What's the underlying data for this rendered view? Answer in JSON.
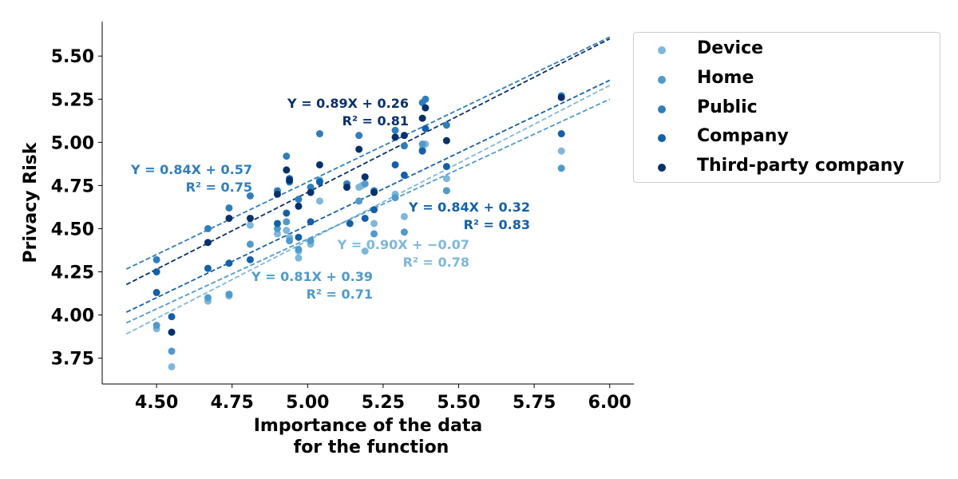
{
  "chart_data": {
    "type": "scatter",
    "xlabel": [
      "Importance of the data",
      "for the function"
    ],
    "ylabel": "Privacy Risk",
    "xlim": [
      4.32,
      6.08
    ],
    "ylim": [
      3.6,
      5.7
    ],
    "xticks": [
      "4.50",
      "4.75",
      "5.00",
      "5.25",
      "5.50",
      "5.75",
      "6.00"
    ],
    "yticks": [
      "3.75",
      "4.00",
      "4.25",
      "4.50",
      "4.75",
      "5.00",
      "5.25",
      "5.50"
    ],
    "legend_position": "outside-right-top",
    "series": [
      {
        "name": "Device",
        "color": "#7fb7da",
        "fit": {
          "slope": 0.9,
          "intercept": -0.07,
          "x_range": [
            4.4,
            6.0
          ]
        },
        "equation": "Y = 0.90X + −0.07",
        "r2": "R² = 0.78",
        "points": [
          [
            4.5,
            3.92
          ],
          [
            4.55,
            3.7
          ],
          [
            4.67,
            4.08
          ],
          [
            4.74,
            4.11
          ],
          [
            4.81,
            4.52
          ],
          [
            4.9,
            4.47
          ],
          [
            4.93,
            4.49
          ],
          [
            4.94,
            4.45
          ],
          [
            4.97,
            4.37
          ],
          [
            4.97,
            4.33
          ],
          [
            5.01,
            4.41
          ],
          [
            5.04,
            4.66
          ],
          [
            5.17,
            4.74
          ],
          [
            5.18,
            4.75
          ],
          [
            5.19,
            4.37
          ],
          [
            5.22,
            4.53
          ],
          [
            5.29,
            4.7
          ],
          [
            5.32,
            4.57
          ],
          [
            5.38,
            4.96
          ],
          [
            5.39,
            4.99
          ],
          [
            5.46,
            4.79
          ],
          [
            5.84,
            4.95
          ]
        ]
      },
      {
        "name": "Home",
        "color": "#4f9acc",
        "fit": {
          "slope": 0.81,
          "intercept": 0.39,
          "x_range": [
            4.4,
            6.0
          ]
        },
        "equation": "Y = 0.81X + 0.39",
        "r2": "R² = 0.71",
        "points": [
          [
            4.5,
            3.94
          ],
          [
            4.55,
            3.79
          ],
          [
            4.67,
            4.1
          ],
          [
            4.74,
            4.12
          ],
          [
            4.81,
            4.41
          ],
          [
            4.9,
            4.5
          ],
          [
            4.93,
            4.54
          ],
          [
            4.94,
            4.43
          ],
          [
            4.97,
            4.38
          ],
          [
            5.01,
            4.43
          ],
          [
            5.04,
            4.78
          ],
          [
            5.17,
            4.66
          ],
          [
            5.19,
            4.76
          ],
          [
            5.22,
            4.47
          ],
          [
            5.29,
            4.68
          ],
          [
            5.32,
            4.48
          ],
          [
            5.38,
            4.99
          ],
          [
            5.46,
            4.72
          ],
          [
            5.84,
            4.85
          ]
        ]
      },
      {
        "name": "Public",
        "color": "#2f7ebc",
        "fit": {
          "slope": 0.84,
          "intercept": 0.57,
          "x_range": [
            4.4,
            6.0
          ]
        },
        "equation": "Y = 0.84X + 0.57",
        "r2": "R² = 0.75",
        "points": [
          [
            4.5,
            4.32
          ],
          [
            4.67,
            4.5
          ],
          [
            4.74,
            4.62
          ],
          [
            4.81,
            4.69
          ],
          [
            4.9,
            4.72
          ],
          [
            4.93,
            4.92
          ],
          [
            4.94,
            4.77
          ],
          [
            4.97,
            4.67
          ],
          [
            5.01,
            4.74
          ],
          [
            5.04,
            5.05
          ],
          [
            5.13,
            4.76
          ],
          [
            5.17,
            5.04
          ],
          [
            5.22,
            4.72
          ],
          [
            5.29,
            5.07
          ],
          [
            5.32,
            4.98
          ],
          [
            5.38,
            5.23
          ],
          [
            5.39,
            5.25
          ],
          [
            5.46,
            5.1
          ],
          [
            5.84,
            5.27
          ]
        ]
      },
      {
        "name": "Company",
        "color": "#1460a8",
        "fit": {
          "slope": 0.84,
          "intercept": 0.32,
          "x_range": [
            4.4,
            6.0
          ]
        },
        "equation": "Y = 0.84X + 0.32",
        "r2": "R² = 0.83",
        "points": [
          [
            4.5,
            4.25
          ],
          [
            4.5,
            4.13
          ],
          [
            4.55,
            3.99
          ],
          [
            4.67,
            4.27
          ],
          [
            4.74,
            4.3
          ],
          [
            4.81,
            4.32
          ],
          [
            4.9,
            4.53
          ],
          [
            4.93,
            4.59
          ],
          [
            4.94,
            4.79
          ],
          [
            4.97,
            4.45
          ],
          [
            5.01,
            4.54
          ],
          [
            5.04,
            4.77
          ],
          [
            5.14,
            4.53
          ],
          [
            5.19,
            4.56
          ],
          [
            5.22,
            4.61
          ],
          [
            5.29,
            4.87
          ],
          [
            5.32,
            4.81
          ],
          [
            5.38,
            4.95
          ],
          [
            5.39,
            5.08
          ],
          [
            5.46,
            4.86
          ],
          [
            5.84,
            5.05
          ]
        ]
      },
      {
        "name": "Third-party company",
        "color": "#08306b",
        "fit": {
          "slope": 0.89,
          "intercept": 0.26,
          "x_range": [
            4.4,
            6.0
          ]
        },
        "equation": "Y = 0.89X + 0.26",
        "r2": "R² = 0.81",
        "points": [
          [
            4.55,
            3.9
          ],
          [
            4.67,
            4.42
          ],
          [
            4.74,
            4.56
          ],
          [
            4.81,
            4.56
          ],
          [
            4.9,
            4.7
          ],
          [
            4.93,
            4.84
          ],
          [
            4.94,
            4.78
          ],
          [
            4.97,
            4.63
          ],
          [
            5.01,
            4.71
          ],
          [
            5.04,
            4.87
          ],
          [
            5.13,
            4.74
          ],
          [
            5.17,
            4.96
          ],
          [
            5.19,
            4.8
          ],
          [
            5.22,
            4.71
          ],
          [
            5.29,
            5.03
          ],
          [
            5.32,
            5.04
          ],
          [
            5.38,
            5.14
          ],
          [
            5.39,
            5.2
          ],
          [
            5.46,
            5.01
          ],
          [
            5.84,
            5.26
          ]
        ]
      }
    ]
  }
}
